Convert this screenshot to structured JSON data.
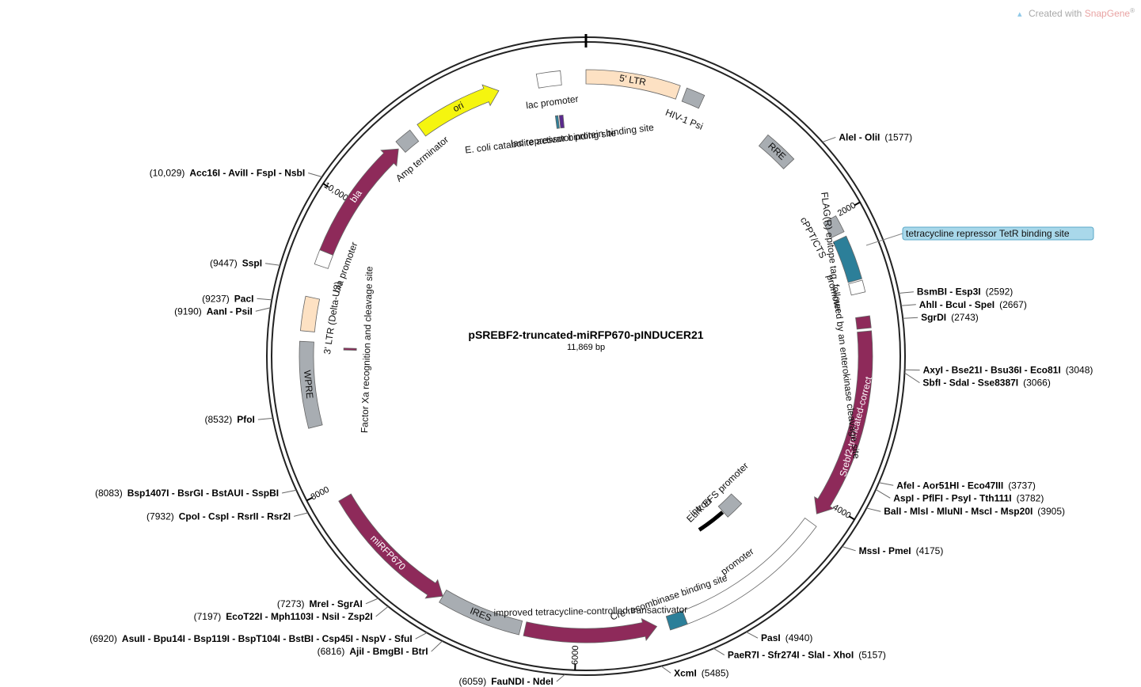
{
  "watermark": {
    "text": "Created with",
    "brand": "SnapGene",
    "mark": "®"
  },
  "plasmid": {
    "name": "pSREBF2-truncated-miRFP670-pINDUCER21",
    "size_text": "11,869 bp",
    "length_bp": 11869
  },
  "colors": {
    "magenta": "#8e2a5a",
    "gray": "#a8adb2",
    "peach": "#fde1c3",
    "yellow": "#f5f50f",
    "teal": "#2c7f99",
    "tetr_box": "#a9d8ea",
    "tetr_border": "#5ba9c8",
    "purple": "#5b2a8e"
  },
  "ticks": [
    {
      "bp": 2000,
      "label": "2000"
    },
    {
      "bp": 4000,
      "label": "4000"
    },
    {
      "bp": 6000,
      "label": "6000"
    },
    {
      "bp": 8000,
      "label": "8000"
    },
    {
      "bp": 10000,
      "label": "10,000"
    }
  ],
  "features": [
    {
      "id": "ltr5",
      "label": "5' LTR",
      "start": 0,
      "end": 634,
      "track": 1,
      "type": "box",
      "color": "peach",
      "inside_label": true
    },
    {
      "id": "hiv_psi",
      "label": "HIV-1 Psi",
      "start": 680,
      "end": 806,
      "track": 1,
      "type": "box",
      "color": "gray"
    },
    {
      "id": "rre",
      "label": "RRE",
      "start": 1300,
      "end": 1534,
      "track": 1,
      "type": "box",
      "color": "gray",
      "inside_label": true
    },
    {
      "id": "cppt",
      "label": "cPPT/CTS",
      "start": 2000,
      "end": 2118,
      "track": 1,
      "type": "box",
      "color": "gray"
    },
    {
      "id": "tre",
      "label": "tetracycline repressor TetR binding site",
      "start": 2150,
      "end": 2450,
      "track": 1,
      "type": "box",
      "color": "teal"
    },
    {
      "id": "promoter1",
      "label": "promoter",
      "start": 2460,
      "end": 2540,
      "track": 1,
      "type": "box",
      "color": "white"
    },
    {
      "id": "flag",
      "label": "FLAG(R) epitope tag, followed by an enterokinase cleavage site",
      "start": 2700,
      "end": 2780,
      "track": 1,
      "type": "box",
      "color": "magenta"
    },
    {
      "id": "srebf2",
      "label": "Srebf2-truncated-correct",
      "start": 2800,
      "end": 4100,
      "track": 1,
      "type": "arrow_cw",
      "color": "magenta",
      "inside_label": true
    },
    {
      "id": "promoter2",
      "label": "promoter",
      "start": 4170,
      "end": 5300,
      "track": 1,
      "type": "box",
      "color": "white"
    },
    {
      "id": "rtta",
      "label": "improved tetracycline-controlled transactivator",
      "start": 5450,
      "end": 6350,
      "track": 1,
      "type": "arrow_ccw",
      "color": "magenta"
    },
    {
      "id": "ires1",
      "label": "IRES",
      "start": 6380,
      "end": 6950,
      "track": 1,
      "type": "box",
      "color": "gray",
      "inside_label": true
    },
    {
      "id": "mirfp670",
      "label": "miRFP670",
      "start": 6950,
      "end": 7900,
      "track": 1,
      "type": "arrow_ccw",
      "color": "magenta",
      "inside_label": true
    },
    {
      "id": "wpre",
      "label": "WPRE",
      "start": 8420,
      "end": 9000,
      "track": 1,
      "type": "box",
      "color": "gray",
      "inside_label": true
    },
    {
      "id": "ltr3",
      "label": "3' LTR (Delta-U3)",
      "start": 9070,
      "end": 9300,
      "track": 1,
      "type": "box",
      "color": "peach"
    },
    {
      "id": "bla_prom",
      "label": "bla promoter",
      "start": 9520,
      "end": 9620,
      "track": 1,
      "type": "box",
      "color": "white"
    },
    {
      "id": "bla",
      "label": "bla",
      "start": 9620,
      "end": 10480,
      "track": 1,
      "type": "arrow_cw",
      "color": "magenta",
      "inside_label": true
    },
    {
      "id": "amp_term",
      "label": "Amp terminator",
      "start": 10500,
      "end": 10620,
      "track": 1,
      "type": "box",
      "color": "gray"
    },
    {
      "id": "ori",
      "label": "ori",
      "start": 10680,
      "end": 11270,
      "track": 1,
      "type": "arrow_cw",
      "color": "yellow",
      "inside_label": true
    },
    {
      "id": "lac_prom",
      "label": "lac promoter",
      "start": 11540,
      "end": 11700,
      "track": 1,
      "type": "box",
      "color": "white"
    },
    {
      "id": "cap",
      "label": "E. coli catabolite activator protein binding site",
      "start": 11630,
      "end": 11650,
      "track": 3,
      "type": "thin",
      "color": "teal"
    },
    {
      "id": "lacO",
      "label": "lac repressor binding site",
      "start": 11660,
      "end": 11690,
      "track": 3,
      "type": "thin",
      "color": "purple"
    },
    {
      "id": "cre",
      "label": "Cre recombinase binding site",
      "start": 5250,
      "end": 5370,
      "track": 1,
      "type": "box",
      "color": "teal"
    },
    {
      "id": "efs",
      "label": "Eurk EFS promoter",
      "start": 4400,
      "end": 4570,
      "track": 2,
      "type": "box",
      "color": "gray"
    },
    {
      "id": "intron",
      "label": "intron",
      "start": 4580,
      "end": 4840,
      "track": 2,
      "type": "line",
      "color": "black"
    },
    {
      "id": "fxa",
      "label": "Factor Xa recognition and cleavage site",
      "start": 8950,
      "end": 8965,
      "track": 3,
      "type": "thin",
      "color": "magenta"
    }
  ],
  "feature_labels": [
    {
      "for": "hiv_psi",
      "text": "HIV-1 Psi"
    },
    {
      "for": "cppt",
      "text": "cPPT/CTS"
    },
    {
      "for": "promoter1",
      "text": "promoter"
    },
    {
      "for": "flag",
      "text": "FLAG(R) epitope tag, followed by an enterokinase cleavage site"
    },
    {
      "for": "promoter2",
      "text": "promoter"
    },
    {
      "for": "cre",
      "text": "Cre recombinase binding site"
    },
    {
      "for": "rtta",
      "text": "improved tetracycline-controlled transactivator"
    },
    {
      "for": "ltr3",
      "text": "3' LTR (Delta-U3)"
    },
    {
      "for": "bla_prom",
      "text": "bla promoter"
    },
    {
      "for": "amp_term",
      "text": "Amp terminator"
    },
    {
      "for": "lac_prom",
      "text": "lac promoter"
    },
    {
      "for": "cap",
      "text": "E. coli catabolite activator protein binding site"
    },
    {
      "for": "lacO",
      "text": "lac repressor binding site"
    },
    {
      "for": "efs",
      "text": "Eurk EFS promoter"
    },
    {
      "for": "intron",
      "text": "intron"
    },
    {
      "for": "fxa",
      "text": "Factor Xa recognition and cleavage site"
    }
  ],
  "tetr_callout": {
    "text": "tetracycline repressor TetR binding site"
  },
  "sites": [
    {
      "bp": 1577,
      "names": "AleI - OliI",
      "pos": "(1577)",
      "side": "right"
    },
    {
      "bp": 2592,
      "names": "BsmBI - Esp3I",
      "pos": "(2592)",
      "side": "right"
    },
    {
      "bp": 2667,
      "names": "AhlI - BcuI - SpeI",
      "pos": "(2667)",
      "side": "right"
    },
    {
      "bp": 2743,
      "names": "SgrDI",
      "pos": "(2743)",
      "side": "right"
    },
    {
      "bp": 3048,
      "names": "AxyI - Bse21I - Bsu36I - Eco81I",
      "pos": "(3048)",
      "side": "right"
    },
    {
      "bp": 3066,
      "names": "SbfI - SdaI - Sse8387I",
      "pos": "(3066)",
      "side": "right"
    },
    {
      "bp": 3737,
      "names": "AfeI - Aor51HI - Eco47III",
      "pos": "(3737)",
      "side": "right"
    },
    {
      "bp": 3782,
      "names": "AspI - PflFI - PsyI - Tth111I",
      "pos": "(3782)",
      "side": "right"
    },
    {
      "bp": 3905,
      "names": "BalI - MlsI - MluNI - MscI - Msp20I",
      "pos": "(3905)",
      "side": "right"
    },
    {
      "bp": 4175,
      "names": "MssI - PmeI",
      "pos": "(4175)",
      "side": "right"
    },
    {
      "bp": 4940,
      "names": "PasI",
      "pos": "(4940)",
      "side": "right"
    },
    {
      "bp": 5157,
      "names": "PaeR7I - Sfr274I - SlaI - XhoI",
      "pos": "(5157)",
      "side": "right"
    },
    {
      "bp": 5485,
      "names": "XcmI",
      "pos": "(5485)",
      "side": "right"
    },
    {
      "bp": 6059,
      "names": "FauNDI - NdeI",
      "pos": "(6059)",
      "side": "left"
    },
    {
      "bp": 6816,
      "names": "AjiI - BmgBI - BtrI",
      "pos": "(6816)",
      "side": "left"
    },
    {
      "bp": 6920,
      "names": "AsuII - Bpu14I - Bsp119I - BspT104I - BstBI - Csp45I - NspV - SfuI",
      "pos": "(6920)",
      "side": "left"
    },
    {
      "bp": 7197,
      "names": "EcoT22I - Mph1103I - NsiI - Zsp2I",
      "pos": "(7197)",
      "side": "left"
    },
    {
      "bp": 7273,
      "names": "MreI - SgrAI",
      "pos": "(7273)",
      "side": "left"
    },
    {
      "bp": 7932,
      "names": "CpoI - CspI - RsrII - Rsr2I",
      "pos": "(7932)",
      "side": "left"
    },
    {
      "bp": 8083,
      "names": "Bsp1407I - BsrGI - BstAUI - SspBI",
      "pos": "(8083)",
      "side": "left"
    },
    {
      "bp": 8532,
      "names": "PfoI",
      "pos": "(8532)",
      "side": "left"
    },
    {
      "bp": 9190,
      "names": "AanI - PsiI",
      "pos": "(9190)",
      "side": "left"
    },
    {
      "bp": 9237,
      "names": "PacI",
      "pos": "(9237)",
      "side": "left"
    },
    {
      "bp": 9447,
      "names": "SspI",
      "pos": "(9447)",
      "side": "left"
    },
    {
      "bp": 10029,
      "names": "Acc16I - AviII - FspI - NsbI",
      "pos": "(10,029)",
      "side": "left"
    }
  ]
}
